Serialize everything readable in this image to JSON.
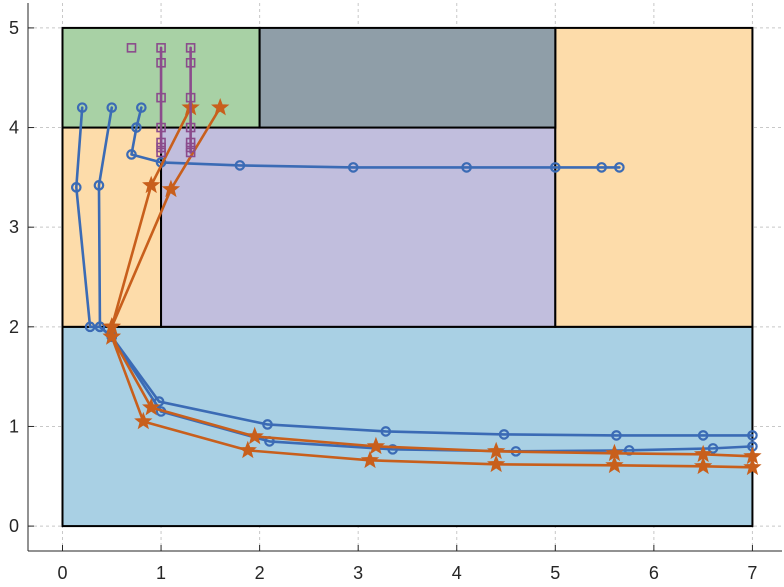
{
  "chart_data": {
    "type": "line",
    "title": "",
    "xlabel": "",
    "ylabel": "",
    "xlim": [
      -0.35,
      7.3
    ],
    "ylim": [
      -0.25,
      5.25
    ],
    "xticks": [
      "0",
      "1",
      "2",
      "3",
      "4",
      "5",
      "6",
      "7"
    ],
    "yticks": [
      "0",
      "1",
      "2",
      "3",
      "4",
      "5"
    ],
    "grid": true,
    "regions": [
      {
        "x0": 0,
        "x1": 7,
        "y0": 0,
        "y1": 2,
        "color": "#a9d0e4"
      },
      {
        "x0": 0,
        "x1": 1,
        "y0": 2,
        "y1": 4,
        "color": "#fddcaa"
      },
      {
        "x0": 1,
        "x1": 5,
        "y0": 2,
        "y1": 4,
        "color": "#c1bedd"
      },
      {
        "x0": 5,
        "x1": 7,
        "y0": 2,
        "y1": 5,
        "color": "#fddcaa"
      },
      {
        "x0": 0,
        "x1": 2,
        "y0": 4,
        "y1": 5,
        "color": "#a8d1a5"
      },
      {
        "x0": 2,
        "x1": 5,
        "y0": 4,
        "y1": 5,
        "color": "#8f9ea8"
      }
    ],
    "series": [
      {
        "marker": "circle",
        "color": "#3b6bb5",
        "points": [
          [
            0.2,
            4.2
          ],
          [
            0.14,
            3.4
          ],
          [
            0.28,
            2.0
          ],
          [
            0.38,
            2.0
          ],
          [
            0.5,
            1.9
          ],
          [
            0.98,
            1.25
          ],
          [
            2.08,
            1.02
          ],
          [
            3.28,
            0.95
          ],
          [
            4.48,
            0.92
          ],
          [
            5.62,
            0.91
          ],
          [
            6.5,
            0.91
          ],
          [
            7.0,
            0.91
          ]
        ]
      },
      {
        "marker": "circle",
        "color": "#3b6bb5",
        "points": [
          [
            0.5,
            4.2
          ],
          [
            0.37,
            3.42
          ],
          [
            0.38,
            2.0
          ],
          [
            0.5,
            1.9
          ],
          [
            1.0,
            1.15
          ],
          [
            2.1,
            0.85
          ],
          [
            3.35,
            0.77
          ],
          [
            4.6,
            0.75
          ],
          [
            5.75,
            0.76
          ],
          [
            6.6,
            0.78
          ],
          [
            7.0,
            0.8
          ]
        ]
      },
      {
        "marker": "circle",
        "color": "#3b6bb5",
        "points": [
          [
            0.8,
            4.2
          ],
          [
            0.75,
            4.0
          ],
          [
            0.7,
            3.73
          ],
          [
            1.0,
            3.65
          ],
          [
            1.8,
            3.62
          ],
          [
            2.95,
            3.6
          ],
          [
            4.1,
            3.6
          ],
          [
            5.0,
            3.6
          ],
          [
            5.47,
            3.6
          ],
          [
            5.65,
            3.6
          ]
        ]
      },
      {
        "marker": "star",
        "color": "#c85f1c",
        "points": [
          [
            1.3,
            4.2
          ],
          [
            0.9,
            3.42
          ],
          [
            0.5,
            2.0
          ],
          [
            0.5,
            1.9
          ],
          [
            0.9,
            1.19
          ],
          [
            1.95,
            0.9
          ],
          [
            3.18,
            0.8
          ],
          [
            4.4,
            0.75
          ],
          [
            5.6,
            0.73
          ],
          [
            6.5,
            0.72
          ],
          [
            7.0,
            0.7
          ]
        ]
      },
      {
        "marker": "star",
        "color": "#c85f1c",
        "points": [
          [
            1.6,
            4.2
          ],
          [
            1.1,
            3.38
          ],
          [
            0.5,
            2.0
          ],
          [
            0.5,
            1.9
          ],
          [
            0.82,
            1.05
          ],
          [
            1.88,
            0.76
          ],
          [
            3.12,
            0.66
          ],
          [
            4.4,
            0.62
          ],
          [
            5.6,
            0.61
          ],
          [
            6.5,
            0.6
          ],
          [
            7.0,
            0.59
          ]
        ]
      },
      {
        "marker": "square",
        "color": "#8b4b8c",
        "points": [
          [
            1.0,
            4.8
          ],
          [
            1.0,
            4.65
          ],
          [
            1.0,
            4.3
          ],
          [
            1.0,
            4.0
          ],
          [
            1.0,
            3.85
          ],
          [
            1.0,
            3.8
          ],
          [
            1.0,
            3.75
          ]
        ]
      },
      {
        "marker": "square",
        "color": "#8b4b8c",
        "points": [
          [
            1.3,
            4.8
          ],
          [
            1.3,
            4.65
          ],
          [
            1.3,
            4.3
          ],
          [
            1.3,
            4.0
          ],
          [
            1.3,
            3.85
          ],
          [
            1.3,
            3.8
          ],
          [
            1.3,
            3.75
          ]
        ]
      },
      {
        "marker": "square",
        "color": "#8b4b8c",
        "points": [
          [
            0.7,
            4.8
          ]
        ]
      }
    ]
  }
}
